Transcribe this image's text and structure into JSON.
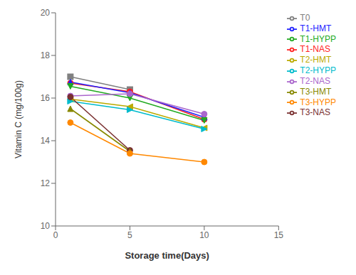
{
  "chart_data": {
    "type": "line",
    "x": [
      1,
      5,
      10
    ],
    "series": [
      {
        "name": "T0",
        "color": "#808080",
        "marker": "square",
        "line_style": "solid",
        "values": [
          17.0,
          16.4,
          null
        ]
      },
      {
        "name": "T1-NAS",
        "color": "#ff2222",
        "marker": "circle",
        "line_style": "solid",
        "values": [
          16.7,
          16.3,
          15.0
        ]
      },
      {
        "name": "T1-HMT",
        "color": "#2222ff",
        "marker": "triangle-up",
        "line_style": "solid",
        "values": [
          16.75,
          16.25,
          15.1
        ]
      },
      {
        "name": "T1-HYPP",
        "color": "#22aa22",
        "marker": "triangle-down",
        "line_style": "solid",
        "values": [
          16.55,
          16.0,
          14.95
        ]
      },
      {
        "name": "T2-NAS",
        "color": "#aa66cc",
        "marker": "circle",
        "line_style": "solid",
        "values": [
          16.1,
          16.2,
          15.25
        ]
      },
      {
        "name": "T2-HMT",
        "color": "#bbaa00",
        "marker": "triangle-left",
        "line_style": "solid",
        "values": [
          15.95,
          15.6,
          14.6
        ]
      },
      {
        "name": "T2-HYPP",
        "color": "#00bbcc",
        "marker": "triangle-right",
        "line_style": "solid",
        "values": [
          15.85,
          15.45,
          14.55
        ]
      },
      {
        "name": "T3-NAS",
        "color": "#7a3030",
        "marker": "circle",
        "line_style": "solid",
        "values": [
          16.05,
          13.55,
          null
        ]
      },
      {
        "name": "T3-HMT",
        "color": "#888800",
        "marker": "triangle-up",
        "line_style": "solid",
        "values": [
          15.5,
          13.5,
          null
        ]
      },
      {
        "name": "T3-HYPP",
        "color": "#ff8800",
        "marker": "circle",
        "line_style": "solid",
        "values": [
          14.85,
          13.4,
          13.0
        ]
      }
    ],
    "xlabel": "Storage time(Days)",
    "ylabel": "Vitamin C (mg/100g)",
    "xlim": [
      0,
      15
    ],
    "ylim": [
      10,
      20
    ],
    "xticks": [
      0,
      5,
      10,
      15
    ],
    "yticks": [
      10,
      12,
      14,
      16,
      18,
      20
    ],
    "grid": false,
    "legend": "right"
  }
}
